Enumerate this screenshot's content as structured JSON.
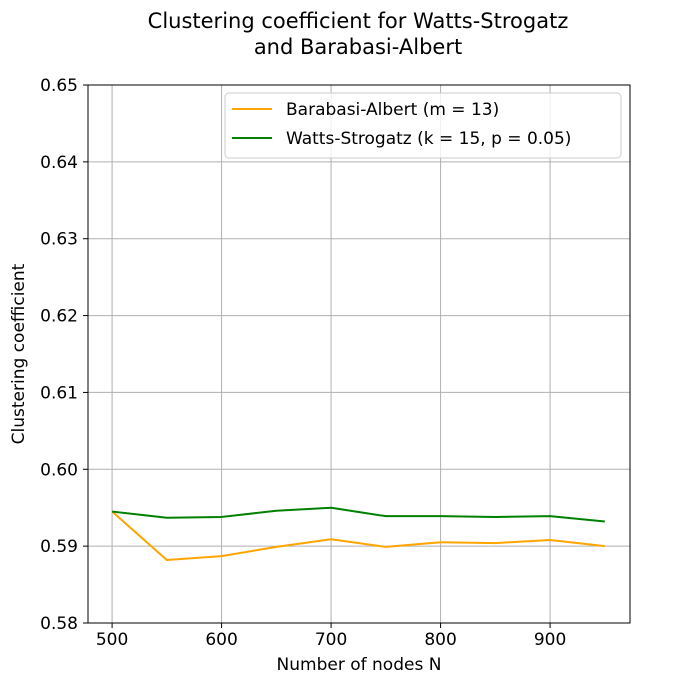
{
  "chart_data": {
    "type": "line",
    "title": "Clustering coefficient for Watts-Strogatz",
    "subtitle": "and Barabasi-Albert",
    "xlabel": "Number of nodes N",
    "ylabel": "Clustering coefficient",
    "xlim": [
      478,
      973
    ],
    "ylim": [
      0.58,
      0.65
    ],
    "x_ticks": [
      500,
      600,
      700,
      800,
      900
    ],
    "y_ticks": [
      "0.58",
      "0.59",
      "0.60",
      "0.61",
      "0.62",
      "0.63",
      "0.64",
      "0.65"
    ],
    "grid": true,
    "legend_position": "top-right",
    "x": [
      500,
      550,
      600,
      650,
      700,
      750,
      800,
      850,
      900,
      950
    ],
    "series": [
      {
        "name": "Barabasi-Albert (m = 13)",
        "color": "#FFA500",
        "values": [
          0.5945,
          0.5882,
          0.5887,
          0.5899,
          0.5909,
          0.5899,
          0.5905,
          0.5904,
          0.5908,
          0.59
        ]
      },
      {
        "name": "Watts-Strogatz (k = 15, p = 0.05)",
        "color": "#008000",
        "values": [
          0.5945,
          0.5937,
          0.5938,
          0.5946,
          0.595,
          0.5939,
          0.5939,
          0.5938,
          0.5939,
          0.5932
        ]
      }
    ]
  }
}
